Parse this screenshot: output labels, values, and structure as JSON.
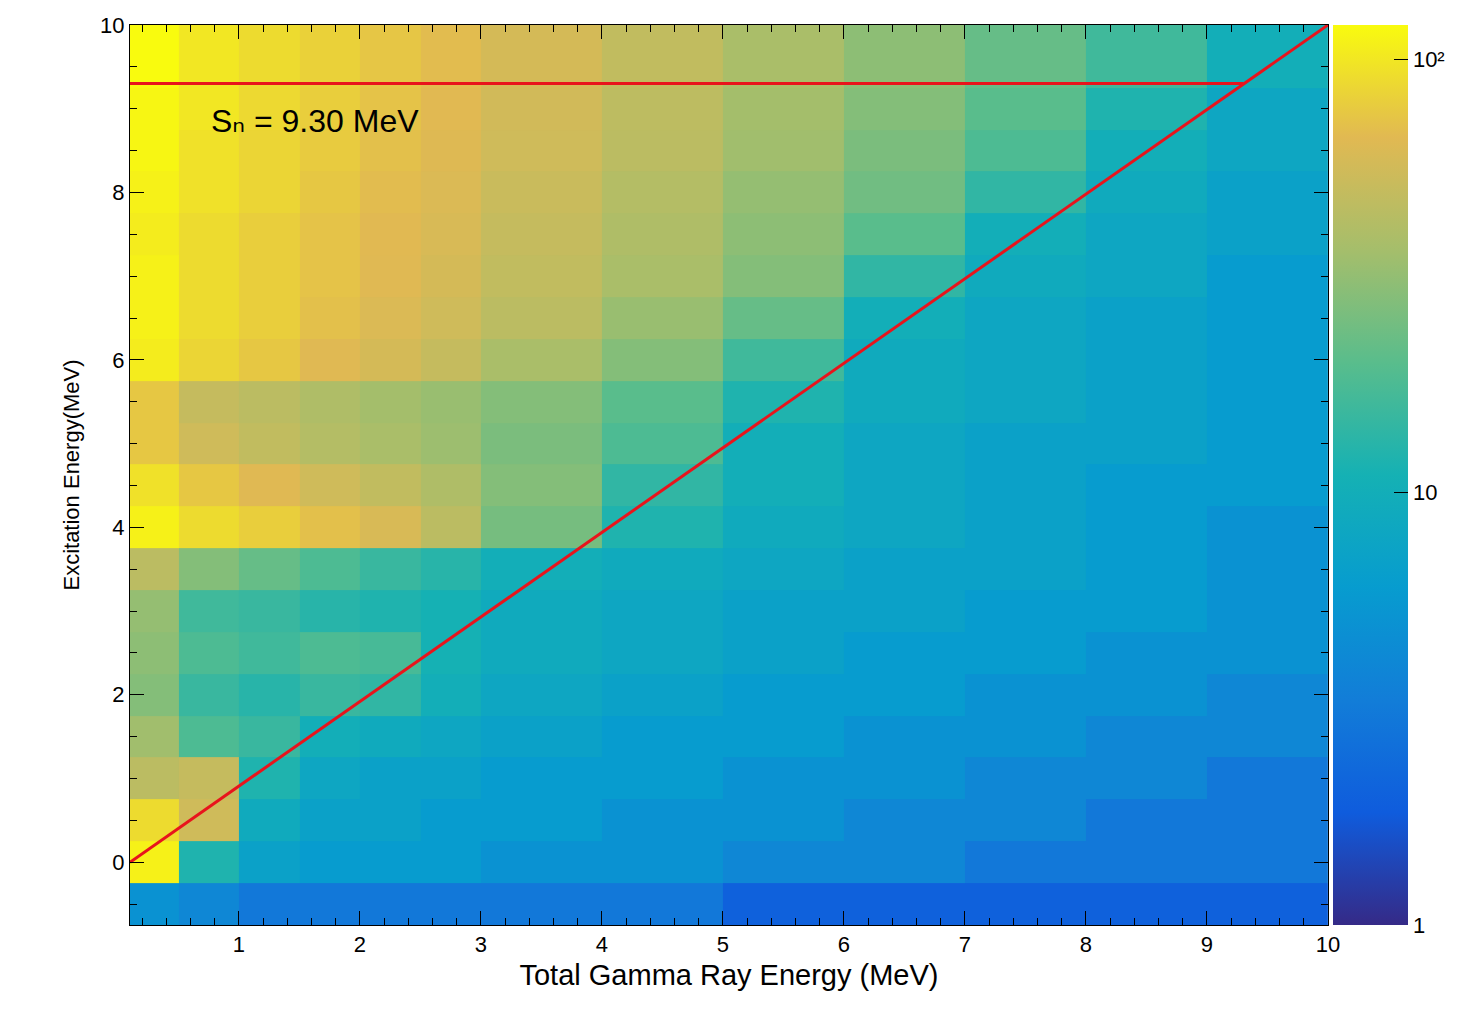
{
  "chart_data": {
    "type": "heatmap",
    "xlabel": "Total Gamma Ray Energy (MeV)",
    "ylabel": "Excitation Energy(MeV)",
    "xlim": [
      0.1,
      10
    ],
    "ylim": [
      -0.75,
      10
    ],
    "xticks": [
      1,
      2,
      3,
      4,
      5,
      6,
      7,
      8,
      9,
      10
    ],
    "yticks": [
      0,
      2,
      4,
      6,
      8,
      10
    ],
    "grid": false,
    "xbins": [
      0,
      0.5,
      1,
      1.5,
      2,
      2.5,
      3,
      4,
      5,
      6,
      7,
      8,
      9,
      10
    ],
    "ybins": [
      -0.75,
      -0.25,
      0.25,
      0.75,
      1.25,
      1.75,
      2.25,
      2.75,
      3.25,
      3.75,
      4.25,
      4.75,
      5.25,
      5.75,
      6.25,
      6.75,
      7.25,
      7.75,
      8.25,
      8.75,
      9.25,
      9.75,
      10.25
    ],
    "cells": [
      [
        5,
        4,
        3,
        3,
        3,
        3,
        3,
        3,
        2,
        2,
        2,
        2,
        2
      ],
      [
        110,
        12,
        7,
        6,
        6,
        6,
        5,
        5,
        4,
        4,
        3,
        3,
        3
      ],
      [
        90,
        55,
        9,
        7,
        7,
        6,
        6,
        5,
        5,
        4,
        4,
        3,
        3
      ],
      [
        45,
        50,
        12,
        8,
        7,
        7,
        6,
        6,
        5,
        5,
        4,
        4,
        3
      ],
      [
        35,
        18,
        15,
        10,
        9,
        8,
        7,
        6,
        6,
        5,
        5,
        4,
        4
      ],
      [
        28,
        15,
        13,
        15,
        14,
        10,
        8,
        7,
        6,
        6,
        5,
        5,
        4
      ],
      [
        30,
        18,
        16,
        18,
        17,
        11,
        9,
        8,
        7,
        6,
        6,
        5,
        5
      ],
      [
        32,
        16,
        15,
        13,
        12,
        11,
        9,
        8,
        7,
        7,
        6,
        6,
        5
      ],
      [
        45,
        28,
        22,
        18,
        15,
        13,
        10,
        9,
        8,
        7,
        7,
        6,
        5
      ],
      [
        110,
        90,
        80,
        70,
        60,
        45,
        25,
        12,
        9,
        8,
        7,
        6,
        5
      ],
      [
        95,
        75,
        65,
        55,
        48,
        40,
        28,
        14,
        10,
        8,
        7,
        6,
        6
      ],
      [
        75,
        55,
        48,
        42,
        38,
        34,
        26,
        18,
        10,
        8,
        7,
        7,
        6
      ],
      [
        75,
        50,
        45,
        40,
        36,
        33,
        28,
        20,
        12,
        9,
        8,
        7,
        6
      ],
      [
        105,
        85,
        75,
        65,
        58,
        50,
        38,
        28,
        16,
        9,
        8,
        7,
        6
      ],
      [
        110,
        90,
        80,
        70,
        62,
        55,
        45,
        33,
        22,
        10,
        8,
        7,
        6
      ],
      [
        110,
        90,
        80,
        72,
        65,
        58,
        48,
        38,
        28,
        14,
        9,
        8,
        6
      ],
      [
        105,
        90,
        80,
        72,
        66,
        60,
        50,
        40,
        30,
        20,
        10,
        8,
        7
      ],
      [
        110,
        95,
        85,
        75,
        68,
        62,
        52,
        42,
        32,
        24,
        14,
        9,
        7
      ],
      [
        115,
        95,
        85,
        78,
        70,
        64,
        55,
        45,
        35,
        26,
        18,
        10,
        8
      ],
      [
        115,
        100,
        88,
        80,
        72,
        66,
        56,
        46,
        36,
        28,
        20,
        12,
        8
      ],
      [
        120,
        100,
        90,
        82,
        74,
        68,
        58,
        48,
        38,
        30,
        22,
        16,
        10
      ],
      [
        120,
        100,
        90,
        82,
        74,
        68,
        58,
        48,
        38,
        30,
        22,
        16,
        10
      ]
    ],
    "colorbar": {
      "range": [
        1,
        120
      ],
      "ticks": [
        1,
        10,
        {
          "value": 100,
          "label": "10²"
        }
      ],
      "log": true
    },
    "lines": [
      {
        "x": [
          0.1,
          9.3
        ],
        "y": [
          9.3,
          9.3
        ],
        "color": "#e8141c"
      },
      {
        "x": [
          0.1,
          10
        ],
        "y": [
          0,
          10
        ],
        "color": "#e8141c"
      }
    ],
    "annotations": [
      {
        "text": "Sₙ = 9.30 MeV",
        "x": 0.75,
        "y": 8.85
      }
    ]
  }
}
